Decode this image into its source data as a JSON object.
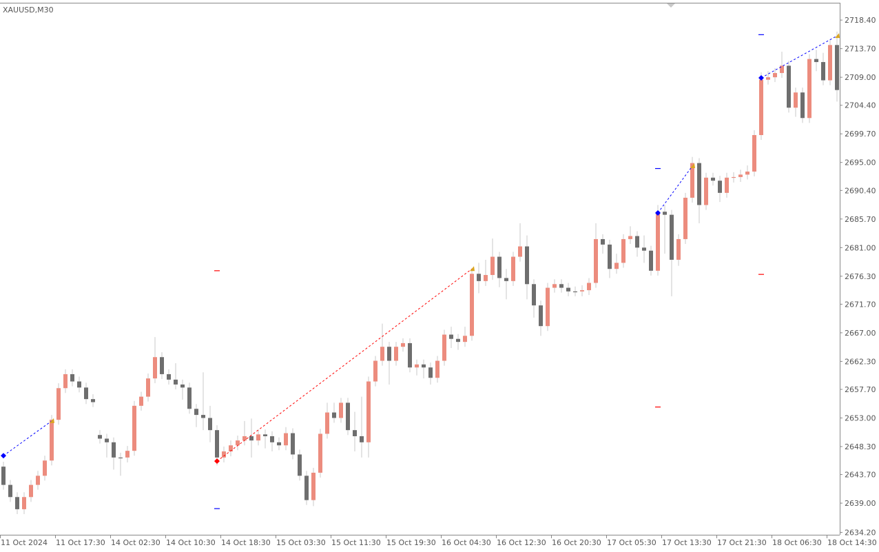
{
  "chart_data": {
    "type": "candlestick",
    "title": "XAUUSD,M30",
    "categories": [
      "11 Oct 2024",
      null,
      null,
      null,
      null,
      null,
      null,
      null,
      "11 Oct 17:30",
      null,
      null,
      null,
      null,
      null,
      null,
      null,
      "14 Oct 02:30",
      null,
      null,
      null,
      null,
      null,
      null,
      null,
      "14 Oct 10:30",
      null,
      null,
      null,
      null,
      null,
      null,
      null,
      "14 Oct 18:30",
      null,
      null,
      null,
      null,
      null,
      null,
      null,
      "15 Oct 03:30",
      null,
      null,
      null,
      null,
      null,
      null,
      null,
      "15 Oct 11:30",
      null,
      null,
      null,
      null,
      null,
      null,
      null,
      "15 Oct 19:30",
      null,
      null,
      null,
      null,
      null,
      null,
      null,
      "16 Oct 04:30",
      null,
      null,
      null,
      null,
      null,
      null,
      null,
      "16 Oct 12:30",
      null,
      null,
      null,
      null,
      null,
      null,
      null,
      "16 Oct 20:30",
      null,
      null,
      null,
      null,
      null,
      null,
      null,
      "17 Oct 05:30",
      null,
      null,
      null,
      null,
      null,
      null,
      null,
      "17 Oct 13:30",
      null,
      null,
      null,
      null,
      null,
      null,
      null,
      "17 Oct 21:30",
      null,
      null,
      null,
      null,
      null,
      null,
      null,
      "18 Oct 06:30",
      null,
      null,
      null,
      null,
      null,
      null,
      null,
      "18 Oct 14:30",
      null
    ],
    "open": [
      2645,
      2642,
      2640,
      2638,
      2640,
      2642,
      2643.5,
      2646,
      2652.7,
      2657.9,
      2660.2,
      2659,
      2658,
      2656.1,
      2650.2,
      2649.6,
      2649,
      2646.5,
      2646.5,
      2647.6,
      2655,
      2656.5,
      2659.5,
      2663,
      2660.2,
      2659.3,
      2658.5,
      2658,
      2654.5,
      2653.5,
      2653,
      2651,
      2646.5,
      2647.5,
      2648.5,
      2649.3,
      2650,
      2649.3,
      2650.3,
      2650,
      2649,
      2648.5,
      2650.5,
      2647,
      2643.5,
      2639.5,
      2644,
      2650.4,
      2653.9,
      2653,
      2655.5,
      2651,
      2650,
      2649,
      2659,
      2662.4,
      2664.7,
      2662.4,
      2664.7,
      2665.3,
      2661.3,
      2661.8,
      2661.3,
      2659.6,
      2662.4,
      2666.7,
      2666,
      2665.5,
      2666.5,
      2676.7,
      2675.5,
      2676.5,
      2679.5,
      2676,
      2675.5,
      2679.5,
      2681.2,
      2675,
      2671.5,
      2668.1,
      2674.4,
      2675,
      2674.4,
      2673.8,
      2673.8,
      2674,
      2675.2,
      2682.4,
      2681.5,
      2677.5,
      2678.5,
      2682.4,
      2682.9,
      2681,
      2680.5,
      2677.2,
      2686.9,
      2686.4,
      2679,
      2682.4,
      2689.2,
      2694.9,
      2688,
      2692.5,
      2692,
      2690,
      2692.5,
      2692.6,
      2693,
      2693.5,
      2699.5,
      2708.6,
      2709,
      2709.7,
      2710.9,
      2704,
      2706.5,
      2702.3,
      2712,
      2711.5,
      2708.5,
      2714.3
    ],
    "high": [
      2645.8,
      2642.8,
      2640.8,
      2640.8,
      2642.8,
      2644.3,
      2646.8,
      2653.5,
      2658.7,
      2661,
      2661,
      2659.8,
      2658.8,
      2656.9,
      2651,
      2650.4,
      2649.8,
      2647.3,
      2648.4,
      2655.8,
      2657.3,
      2660.3,
      2666.3,
      2663.8,
      2661,
      2662,
      2659.3,
      2658.8,
      2655.3,
      2660.5,
      2655,
      2651.8,
      2648.3,
      2649.3,
      2650.1,
      2652.5,
      2652.9,
      2651.1,
      2651.1,
      2650.8,
      2649.8,
      2651.5,
      2651.3,
      2647.8,
      2644.3,
      2644.8,
      2651.2,
      2655.5,
      2655.5,
      2656.3,
      2656.3,
      2654,
      2656.5,
      2659.8,
      2663.2,
      2668.5,
      2665.5,
      2665.5,
      2666.1,
      2666.1,
      2662.6,
      2662.6,
      2662.1,
      2663.2,
      2667.5,
      2668,
      2666.8,
      2668,
      2677.5,
      2678.5,
      2679,
      2682.5,
      2680.3,
      2677.5,
      2680.3,
      2685,
      2683,
      2675.8,
      2672.3,
      2675.2,
      2675.8,
      2675.8,
      2675.2,
      2674.6,
      2674.8,
      2676,
      2685,
      2683.2,
      2682.3,
      2680,
      2683.2,
      2684.5,
      2683.7,
      2683,
      2681.3,
      2688,
      2688,
      2687.2,
      2683.2,
      2690,
      2695.9,
      2695.7,
      2693.3,
      2693.3,
      2692.8,
      2693.3,
      2693.4,
      2693.8,
      2694.5,
      2700.3,
      2709.8,
      2710,
      2710.5,
      2713.2,
      2711.7,
      2707.3,
      2707.3,
      2712.8,
      2713.5,
      2713,
      2715.1,
      2716.5
    ],
    "low": [
      2641.2,
      2639.2,
      2637.2,
      2637.2,
      2639.2,
      2641.2,
      2642.7,
      2645.2,
      2651.9,
      2657.1,
      2658.2,
      2657.2,
      2655.3,
      2654.8,
      2648.8,
      2646.5,
      2644.5,
      2643.5,
      2645.7,
      2646.8,
      2654.2,
      2655.7,
      2658.7,
      2659.4,
      2658.5,
      2657.7,
      2656,
      2653.7,
      2651.5,
      2651,
      2649,
      2645.2,
      2645.7,
      2646.7,
      2647.7,
      2648.5,
      2646.5,
      2648.5,
      2648,
      2647.5,
      2647.7,
      2647.7,
      2646.2,
      2642.7,
      2638.7,
      2638.5,
      2643.2,
      2649.6,
      2652.2,
      2652.2,
      2650.2,
      2647.5,
      2646.5,
      2646.5,
      2658.2,
      2661.6,
      2658.5,
      2661.6,
      2663.9,
      2660.5,
      2660,
      2659.5,
      2658.5,
      2658.8,
      2661.6,
      2664.5,
      2664.2,
      2664.7,
      2665.7,
      2673.5,
      2674.7,
      2675.7,
      2674.5,
      2672.5,
      2674.7,
      2678.7,
      2672.5,
      2669.5,
      2666.5,
      2667.3,
      2673.6,
      2673.6,
      2673,
      2673,
      2673,
      2673.2,
      2674.4,
      2680,
      2676,
      2676.7,
      2677.7,
      2681.6,
      2679.5,
      2678.5,
      2676.4,
      2676.4,
      2680,
      2673,
      2678,
      2681.6,
      2688.4,
      2685,
      2687.2,
      2691.2,
      2688.5,
      2689.2,
      2691.7,
      2691.8,
      2692.2,
      2692.7,
      2698.7,
      2707.8,
      2708.2,
      2708.9,
      2703.2,
      2702.5,
      2701.5,
      2701.5,
      2710,
      2707.7,
      2707.7,
      2705
    ],
    "close": [
      2642,
      2640,
      2638,
      2640,
      2642,
      2643.5,
      2646,
      2652.7,
      2657.9,
      2660.2,
      2659,
      2658,
      2656.1,
      2655.6,
      2649.6,
      2649,
      2646.5,
      2646.5,
      2647.6,
      2655,
      2656.5,
      2659.5,
      2663,
      2660.2,
      2659.3,
      2658.5,
      2658,
      2654.5,
      2653.5,
      2653,
      2651,
      2646.5,
      2647.5,
      2648.5,
      2649.3,
      2650,
      2649.3,
      2650.3,
      2650,
      2649,
      2648.5,
      2650.5,
      2647,
      2643.5,
      2639.5,
      2644,
      2650.4,
      2653.9,
      2653,
      2655.5,
      2651,
      2650,
      2649,
      2659,
      2662.4,
      2664.7,
      2662.4,
      2664.7,
      2665.3,
      2661.3,
      2661.8,
      2661.3,
      2659.6,
      2662.4,
      2666.7,
      2666,
      2665.5,
      2666.5,
      2676.7,
      2675.5,
      2676.5,
      2679.5,
      2676,
      2675.5,
      2679.5,
      2681.2,
      2675,
      2671.5,
      2668.1,
      2674.4,
      2675,
      2674.4,
      2673.8,
      2673.8,
      2674,
      2675.2,
      2682.4,
      2681.5,
      2677.5,
      2678.5,
      2682.4,
      2682.9,
      2681,
      2680.5,
      2677.2,
      2686.9,
      2686.4,
      2679,
      2682.4,
      2689.2,
      2694.9,
      2688,
      2692.5,
      2692,
      2690,
      2692.5,
      2692.6,
      2693,
      2693.5,
      2699.5,
      2708.6,
      2709,
      2709.7,
      2710.9,
      2704,
      2706.5,
      2702.3,
      2712,
      2711.5,
      2708.5,
      2714.3,
      2706.9
    ],
    "up_color": "#ec8c7e",
    "down_color": "#6e6e6e",
    "wick_color": "#c9c9c9",
    "ylim": [
      2633.8,
      2721.7
    ],
    "yticks": [
      {
        "value": 2718.4,
        "label": "2718.40"
      },
      {
        "value": 2713.7,
        "label": "2713.70"
      },
      {
        "value": 2709,
        "label": "2709.00"
      },
      {
        "value": 2704.4,
        "label": "2704.40"
      },
      {
        "value": 2699.7,
        "label": "2699.70"
      },
      {
        "value": 2695,
        "label": "2695.00"
      },
      {
        "value": 2690.4,
        "label": "2690.40"
      },
      {
        "value": 2685.7,
        "label": "2685.70"
      },
      {
        "value": 2681,
        "label": "2681.00"
      },
      {
        "value": 2676.3,
        "label": "2676.30"
      },
      {
        "value": 2671.7,
        "label": "2671.70"
      },
      {
        "value": 2667,
        "label": "2667.00"
      },
      {
        "value": 2662.3,
        "label": "2662.30"
      },
      {
        "value": 2657.7,
        "label": "2657.70"
      },
      {
        "value": 2653,
        "label": "2653.00"
      },
      {
        "value": 2648.3,
        "label": "2648.30"
      },
      {
        "value": 2643.7,
        "label": "2643.70"
      },
      {
        "value": 2639,
        "label": "2639.00"
      },
      {
        "value": 2634.2,
        "label": "2634.20"
      }
    ],
    "grid": false,
    "signal_lines": [
      {
        "color": "#0000ff",
        "x": [
          0,
          7
        ],
        "y": [
          2646.8,
          2652.5
        ]
      },
      {
        "color": "#ff0000",
        "x": [
          31,
          68
        ],
        "y": [
          2645.9,
          2677.5
        ]
      },
      {
        "color": "#0000ff",
        "x": [
          95,
          100
        ],
        "y": [
          2686.7,
          2694.4
        ]
      },
      {
        "color": "#0000ff",
        "x": [
          110,
          121
        ],
        "y": [
          2708.9,
          2715.8
        ]
      }
    ],
    "levels": [
      {
        "x": 31,
        "y": 2677.2,
        "color": "#ff0000"
      },
      {
        "x": 31,
        "y": 2638.1,
        "color": "#0000ff"
      },
      {
        "x": 95,
        "y": 2694,
        "color": "#0000ff"
      },
      {
        "x": 95,
        "y": 2654.8,
        "color": "#ff0000"
      },
      {
        "x": 110,
        "y": 2716,
        "color": "#0000ff"
      },
      {
        "x": 110,
        "y": 2676.6,
        "color": "#ff0000"
      }
    ]
  }
}
